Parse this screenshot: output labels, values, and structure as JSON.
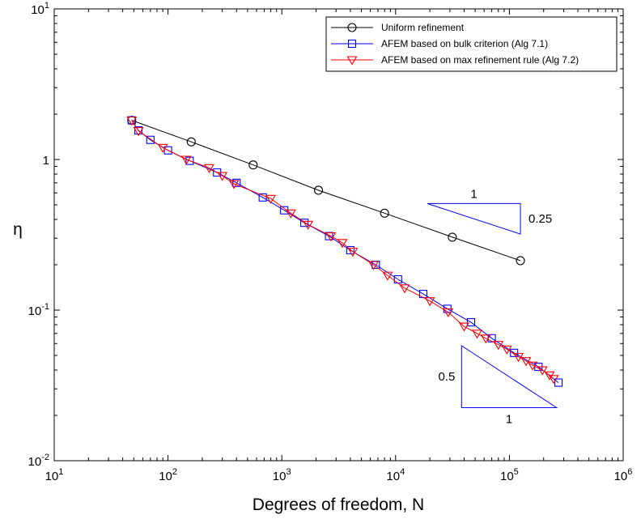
{
  "chart_data": {
    "type": "line",
    "xscale": "log",
    "yscale": "log",
    "xlim": [
      10,
      1000000
    ],
    "ylim": [
      0.01,
      10
    ],
    "xlabel": "Degrees of freedom, N",
    "ylabel": "η",
    "legend_position": "top-right",
    "grid": false,
    "x_ticks": [
      {
        "base": "10",
        "exp": "1"
      },
      {
        "base": "10",
        "exp": "2"
      },
      {
        "base": "10",
        "exp": "3"
      },
      {
        "base": "10",
        "exp": "4"
      },
      {
        "base": "10",
        "exp": "5"
      },
      {
        "base": "10",
        "exp": "6"
      }
    ],
    "y_ticks": [
      {
        "base": "10",
        "exp": "-2"
      },
      {
        "base": "10",
        "exp": "-1"
      },
      {
        "base": "1",
        "exp": ""
      },
      {
        "base": "10",
        "exp": "1"
      }
    ],
    "series": [
      {
        "name": "Uniform refinement",
        "color": "#000000",
        "marker": "circle",
        "x": [
          48,
          160,
          560,
          2100,
          8000,
          31500,
          125000
        ],
        "y": [
          1.82,
          1.31,
          0.92,
          0.625,
          0.44,
          0.305,
          0.213
        ]
      },
      {
        "name": "AFEM based on bulk criterion (Alg 7.1)",
        "color": "#0000ff",
        "marker": "square",
        "x": [
          48,
          55,
          70,
          100,
          155,
          270,
          400,
          680,
          1050,
          1580,
          2600,
          4000,
          6700,
          10500,
          17500,
          28500,
          46000,
          70000,
          110000,
          180000,
          270000
        ],
        "y": [
          1.82,
          1.56,
          1.35,
          1.15,
          0.98,
          0.82,
          0.7,
          0.56,
          0.46,
          0.38,
          0.31,
          0.25,
          0.2,
          0.16,
          0.128,
          0.102,
          0.083,
          0.065,
          0.052,
          0.042,
          0.033
        ]
      },
      {
        "name": "AFEM based on max refinement rule (Alg 7.2)",
        "color": "#ff0000",
        "marker": "triangle-down",
        "x": [
          48,
          55,
          90,
          145,
          230,
          300,
          380,
          800,
          1200,
          1700,
          2700,
          3400,
          4200,
          6400,
          8500,
          12000,
          20000,
          29000,
          40000,
          52000,
          62000,
          80000,
          95000,
          120000,
          140000,
          160000,
          195000,
          225000,
          245000
        ],
        "y": [
          1.82,
          1.55,
          1.2,
          1.0,
          0.88,
          0.78,
          0.69,
          0.55,
          0.44,
          0.37,
          0.31,
          0.28,
          0.245,
          0.2,
          0.17,
          0.14,
          0.115,
          0.097,
          0.078,
          0.07,
          0.065,
          0.059,
          0.055,
          0.049,
          0.046,
          0.043,
          0.04,
          0.037,
          0.035
        ]
      }
    ],
    "annotations": [
      {
        "id": "slope-quarter",
        "run_label": "1",
        "rise_label": "0.25",
        "x_from": 19000,
        "x_to": 125000,
        "y_top": 0.51,
        "y_bottom": 0.32
      },
      {
        "id": "slope-half",
        "run_label": "1",
        "rise_label": "0.5",
        "x_from": 38000,
        "x_to": 260000,
        "y_top": 0.058,
        "y_bottom": 0.0225
      }
    ]
  }
}
